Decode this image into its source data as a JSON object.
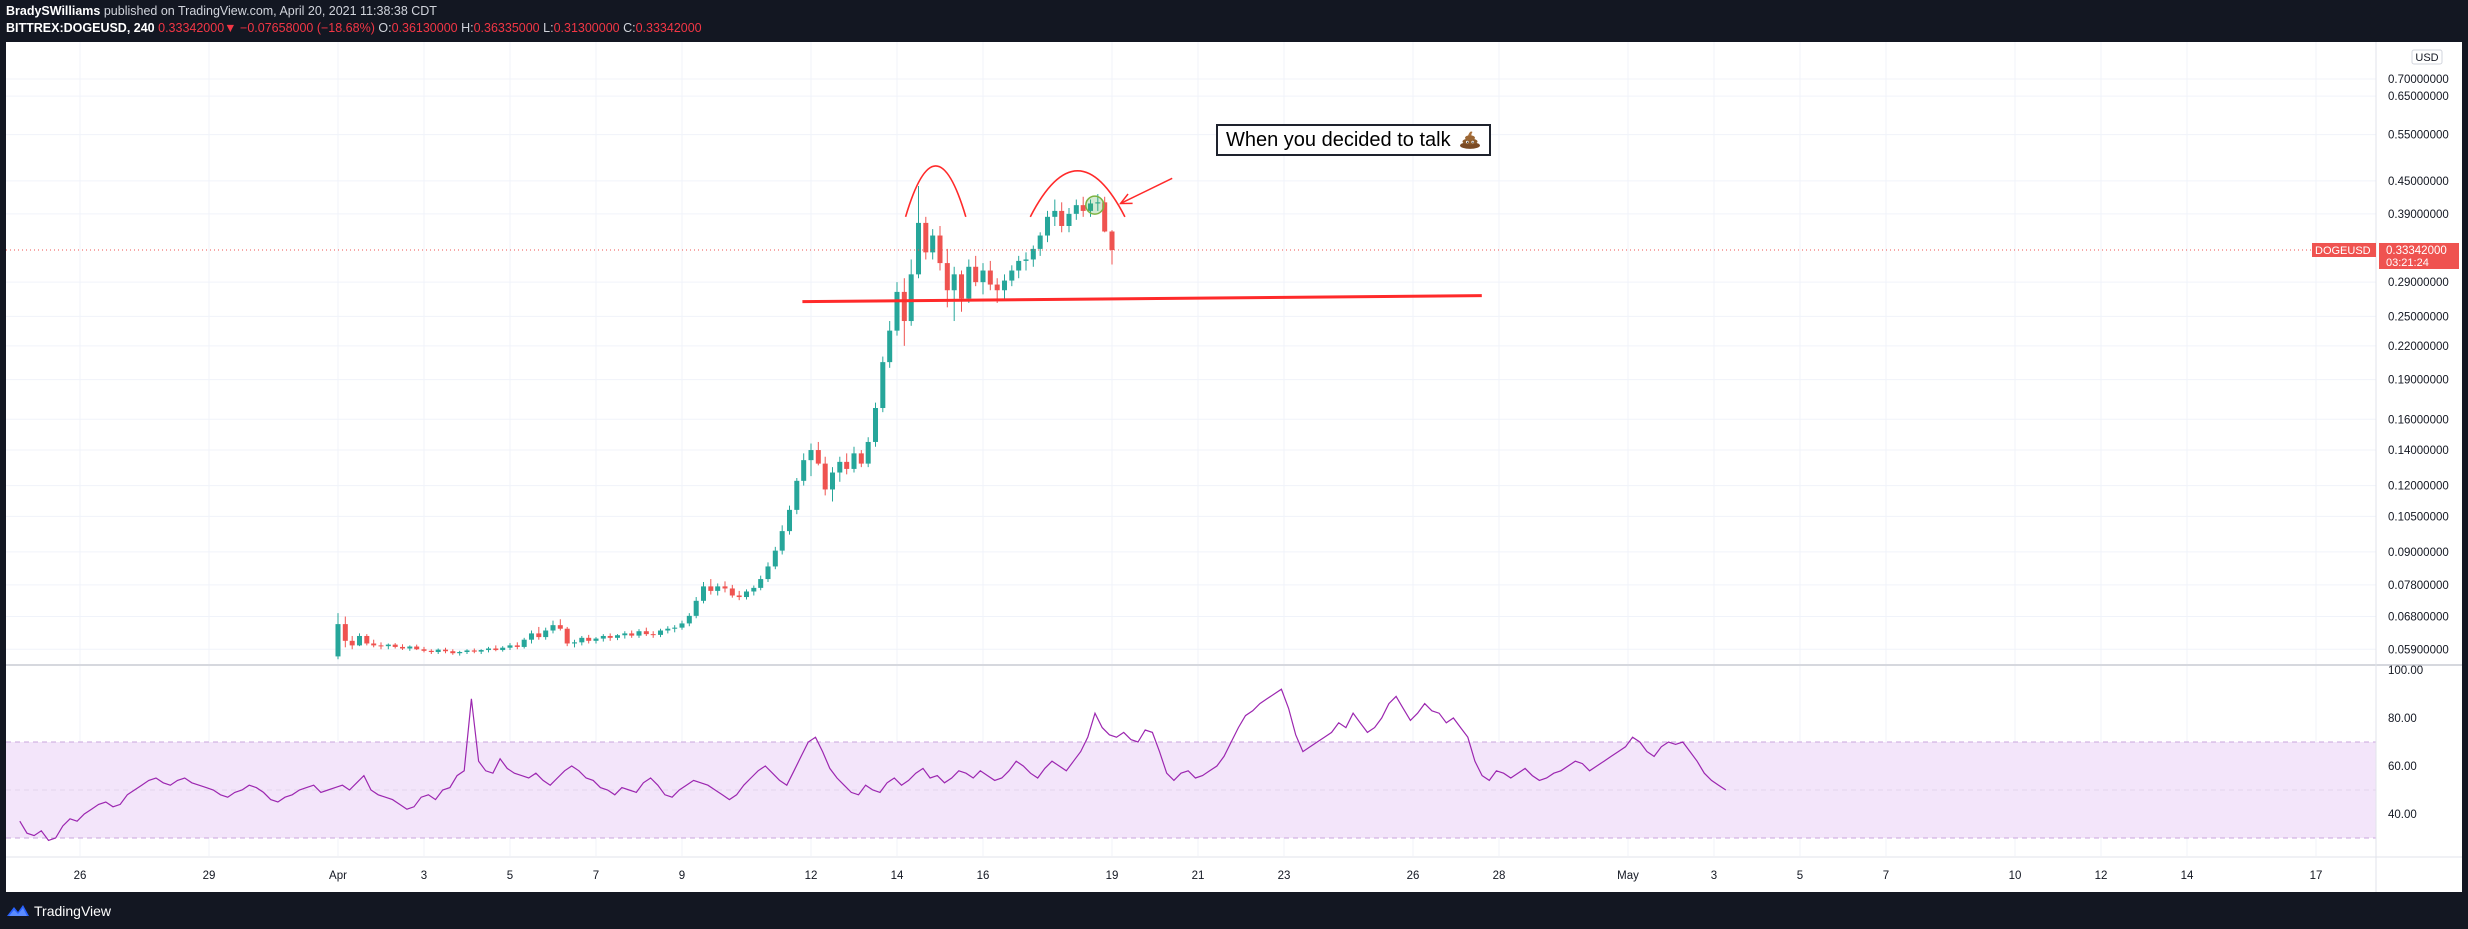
{
  "header": {
    "author": "BradySWilliams",
    "published_text": "published on TradingView.com, April 20, 2021 11:38:38 CDT",
    "symbol": "BITTREX:DOGEUSD, 240",
    "last_price": "0.33342000",
    "change_arrow": "▼",
    "change": "−0.07658000 (−18.68%)",
    "o_label": "O:",
    "o_value": "0.36130000",
    "h_label": "H:",
    "h_value": "0.36335000",
    "l_label": "L:",
    "l_value": "0.31300000",
    "c_label": "C:",
    "c_value": "0.33342000"
  },
  "annotation": {
    "text": "When you decided to talk",
    "icon": "poop-emoji-icon"
  },
  "footer": {
    "brand": "TradingView",
    "logo_icon": "tradingview-logo-icon"
  },
  "colors": {
    "up": "#26a69a",
    "down": "#ef5350",
    "rsi_line": "#9c27b0",
    "rsi_band": "#f3e5fa",
    "marker_line": "#ff2a2a",
    "price_tag": "#ef5350"
  },
  "chart_data": {
    "type": "candlestick",
    "symbol": "DOGEUSD",
    "price_axis": {
      "unit_label": "USD",
      "scale": "log",
      "ticks": [
        "0.70000000",
        "0.65000000",
        "0.55000000",
        "0.45000000",
        "0.39000000",
        "0.29000000",
        "0.25000000",
        "0.22000000",
        "0.19000000",
        "0.16000000",
        "0.14000000",
        "0.12000000",
        "0.10500000",
        "0.09000000",
        "0.07800000",
        "0.06800000",
        "0.05900000"
      ],
      "current_price_label": "0.33342000",
      "current_price_value": 0.33342,
      "countdown": "03:21:24",
      "symbol_tag": "DOGEUSD"
    },
    "x_axis": {
      "ticks": [
        "26",
        "29",
        "Apr",
        "3",
        "5",
        "7",
        "9",
        "12",
        "14",
        "16",
        "19",
        "21",
        "23",
        "26",
        "28",
        "May",
        "3",
        "5",
        "7",
        "10",
        "12",
        "14",
        "17"
      ],
      "tick_day_index": [
        0,
        3,
        6,
        8,
        10,
        12,
        14,
        17,
        19,
        21,
        24,
        26,
        28,
        31,
        33,
        36,
        38,
        40,
        42,
        45,
        47,
        49,
        52
      ],
      "day0": "Mar 26",
      "days_shown": 54.5
    },
    "candles_4h": [
      {
        "t": 6.0,
        "o": 0.0572,
        "h": 0.069,
        "l": 0.0565,
        "c": 0.0658
      },
      {
        "t": 6.17,
        "o": 0.0658,
        "h": 0.068,
        "l": 0.0595,
        "c": 0.0612
      },
      {
        "t": 6.33,
        "o": 0.0612,
        "h": 0.0625,
        "l": 0.059,
        "c": 0.06
      },
      {
        "t": 6.5,
        "o": 0.06,
        "h": 0.0632,
        "l": 0.0598,
        "c": 0.0625
      },
      {
        "t": 6.67,
        "o": 0.0625,
        "h": 0.063,
        "l": 0.06,
        "c": 0.0605
      },
      {
        "t": 6.83,
        "o": 0.0605,
        "h": 0.0615,
        "l": 0.0595,
        "c": 0.06
      },
      {
        "t": 7.0,
        "o": 0.06,
        "h": 0.0608,
        "l": 0.059,
        "c": 0.0598
      },
      {
        "t": 7.17,
        "o": 0.0598,
        "h": 0.0605,
        "l": 0.059,
        "c": 0.0602
      },
      {
        "t": 7.33,
        "o": 0.0602,
        "h": 0.0606,
        "l": 0.0592,
        "c": 0.0596
      },
      {
        "t": 7.5,
        "o": 0.0596,
        "h": 0.0603,
        "l": 0.0588,
        "c": 0.0592
      },
      {
        "t": 7.67,
        "o": 0.0592,
        "h": 0.06,
        "l": 0.0586,
        "c": 0.0597
      },
      {
        "t": 7.83,
        "o": 0.0597,
        "h": 0.0602,
        "l": 0.0588,
        "c": 0.059
      },
      {
        "t": 8.0,
        "o": 0.059,
        "h": 0.0596,
        "l": 0.0582,
        "c": 0.0586
      },
      {
        "t": 8.17,
        "o": 0.0586,
        "h": 0.059,
        "l": 0.0578,
        "c": 0.0583
      },
      {
        "t": 8.33,
        "o": 0.0583,
        "h": 0.0592,
        "l": 0.0578,
        "c": 0.0589
      },
      {
        "t": 8.5,
        "o": 0.0589,
        "h": 0.0594,
        "l": 0.058,
        "c": 0.0585
      },
      {
        "t": 8.67,
        "o": 0.0585,
        "h": 0.059,
        "l": 0.0576,
        "c": 0.058
      },
      {
        "t": 8.83,
        "o": 0.058,
        "h": 0.0586,
        "l": 0.0574,
        "c": 0.0583
      },
      {
        "t": 9.0,
        "o": 0.0583,
        "h": 0.059,
        "l": 0.0578,
        "c": 0.0587
      },
      {
        "t": 9.17,
        "o": 0.0587,
        "h": 0.0592,
        "l": 0.058,
        "c": 0.0584
      },
      {
        "t": 9.33,
        "o": 0.0584,
        "h": 0.059,
        "l": 0.0578,
        "c": 0.0588
      },
      {
        "t": 9.5,
        "o": 0.0588,
        "h": 0.0596,
        "l": 0.0582,
        "c": 0.0592
      },
      {
        "t": 9.67,
        "o": 0.0592,
        "h": 0.06,
        "l": 0.0585,
        "c": 0.0588
      },
      {
        "t": 9.83,
        "o": 0.0588,
        "h": 0.0598,
        "l": 0.0584,
        "c": 0.0594
      },
      {
        "t": 10.0,
        "o": 0.0594,
        "h": 0.0606,
        "l": 0.0588,
        "c": 0.06
      },
      {
        "t": 10.17,
        "o": 0.06,
        "h": 0.0608,
        "l": 0.059,
        "c": 0.0596
      },
      {
        "t": 10.33,
        "o": 0.0596,
        "h": 0.062,
        "l": 0.0592,
        "c": 0.0615
      },
      {
        "t": 10.5,
        "o": 0.0615,
        "h": 0.064,
        "l": 0.0605,
        "c": 0.0632
      },
      {
        "t": 10.67,
        "o": 0.0632,
        "h": 0.065,
        "l": 0.0615,
        "c": 0.0622
      },
      {
        "t": 10.83,
        "o": 0.0622,
        "h": 0.0648,
        "l": 0.0615,
        "c": 0.064
      },
      {
        "t": 11.0,
        "o": 0.064,
        "h": 0.0668,
        "l": 0.0632,
        "c": 0.0655
      },
      {
        "t": 11.17,
        "o": 0.0655,
        "h": 0.0672,
        "l": 0.064,
        "c": 0.0645
      },
      {
        "t": 11.33,
        "o": 0.0645,
        "h": 0.065,
        "l": 0.0598,
        "c": 0.0605
      },
      {
        "t": 11.5,
        "o": 0.0605,
        "h": 0.0615,
        "l": 0.0595,
        "c": 0.0608
      },
      {
        "t": 11.67,
        "o": 0.0608,
        "h": 0.0625,
        "l": 0.06,
        "c": 0.062
      },
      {
        "t": 11.83,
        "o": 0.062,
        "h": 0.0628,
        "l": 0.0605,
        "c": 0.0612
      },
      {
        "t": 12.0,
        "o": 0.0612,
        "h": 0.0622,
        "l": 0.0605,
        "c": 0.0618
      },
      {
        "t": 12.17,
        "o": 0.0618,
        "h": 0.063,
        "l": 0.061,
        "c": 0.0625
      },
      {
        "t": 12.33,
        "o": 0.0625,
        "h": 0.0632,
        "l": 0.0612,
        "c": 0.062
      },
      {
        "t": 12.5,
        "o": 0.062,
        "h": 0.063,
        "l": 0.0614,
        "c": 0.0627
      },
      {
        "t": 12.67,
        "o": 0.0627,
        "h": 0.0638,
        "l": 0.0618,
        "c": 0.0632
      },
      {
        "t": 12.83,
        "o": 0.0632,
        "h": 0.064,
        "l": 0.062,
        "c": 0.0626
      },
      {
        "t": 13.0,
        "o": 0.0626,
        "h": 0.0644,
        "l": 0.062,
        "c": 0.0638
      },
      {
        "t": 13.17,
        "o": 0.0638,
        "h": 0.0648,
        "l": 0.0625,
        "c": 0.063
      },
      {
        "t": 13.33,
        "o": 0.063,
        "h": 0.0638,
        "l": 0.062,
        "c": 0.0628
      },
      {
        "t": 13.5,
        "o": 0.0628,
        "h": 0.0645,
        "l": 0.0622,
        "c": 0.064
      },
      {
        "t": 13.67,
        "o": 0.064,
        "h": 0.0652,
        "l": 0.0632,
        "c": 0.0645
      },
      {
        "t": 13.83,
        "o": 0.0645,
        "h": 0.0655,
        "l": 0.0635,
        "c": 0.0648
      },
      {
        "t": 14.0,
        "o": 0.0648,
        "h": 0.0668,
        "l": 0.0642,
        "c": 0.066
      },
      {
        "t": 14.17,
        "o": 0.066,
        "h": 0.069,
        "l": 0.0652,
        "c": 0.0682
      },
      {
        "t": 14.33,
        "o": 0.0682,
        "h": 0.074,
        "l": 0.0675,
        "c": 0.0728
      },
      {
        "t": 14.5,
        "o": 0.0728,
        "h": 0.079,
        "l": 0.072,
        "c": 0.0775
      },
      {
        "t": 14.67,
        "o": 0.0775,
        "h": 0.08,
        "l": 0.0748,
        "c": 0.076
      },
      {
        "t": 14.83,
        "o": 0.076,
        "h": 0.0785,
        "l": 0.0745,
        "c": 0.0775
      },
      {
        "t": 15.0,
        "o": 0.0775,
        "h": 0.0792,
        "l": 0.0755,
        "c": 0.0768
      },
      {
        "t": 15.17,
        "o": 0.0768,
        "h": 0.078,
        "l": 0.0738,
        "c": 0.0745
      },
      {
        "t": 15.33,
        "o": 0.0745,
        "h": 0.076,
        "l": 0.073,
        "c": 0.074
      },
      {
        "t": 15.5,
        "o": 0.074,
        "h": 0.0765,
        "l": 0.0732,
        "c": 0.0758
      },
      {
        "t": 15.67,
        "o": 0.0758,
        "h": 0.0778,
        "l": 0.0745,
        "c": 0.077
      },
      {
        "t": 15.83,
        "o": 0.077,
        "h": 0.0812,
        "l": 0.0762,
        "c": 0.08
      },
      {
        "t": 16.0,
        "o": 0.08,
        "h": 0.086,
        "l": 0.079,
        "c": 0.0845
      },
      {
        "t": 16.17,
        "o": 0.0845,
        "h": 0.092,
        "l": 0.0835,
        "c": 0.0905
      },
      {
        "t": 16.33,
        "o": 0.0905,
        "h": 0.101,
        "l": 0.089,
        "c": 0.0985
      },
      {
        "t": 16.5,
        "o": 0.0985,
        "h": 0.11,
        "l": 0.097,
        "c": 0.108
      },
      {
        "t": 16.67,
        "o": 0.108,
        "h": 0.124,
        "l": 0.106,
        "c": 0.1225
      },
      {
        "t": 16.83,
        "o": 0.1225,
        "h": 0.138,
        "l": 0.12,
        "c": 0.134
      },
      {
        "t": 17.0,
        "o": 0.134,
        "h": 0.144,
        "l": 0.125,
        "c": 0.14
      },
      {
        "t": 17.17,
        "o": 0.14,
        "h": 0.145,
        "l": 0.131,
        "c": 0.132
      },
      {
        "t": 17.33,
        "o": 0.132,
        "h": 0.136,
        "l": 0.115,
        "c": 0.118
      },
      {
        "t": 17.5,
        "o": 0.118,
        "h": 0.13,
        "l": 0.112,
        "c": 0.127
      },
      {
        "t": 17.67,
        "o": 0.127,
        "h": 0.136,
        "l": 0.122,
        "c": 0.133
      },
      {
        "t": 17.83,
        "o": 0.133,
        "h": 0.138,
        "l": 0.126,
        "c": 0.129
      },
      {
        "t": 18.0,
        "o": 0.129,
        "h": 0.142,
        "l": 0.127,
        "c": 0.138
      },
      {
        "t": 18.17,
        "o": 0.138,
        "h": 0.14,
        "l": 0.13,
        "c": 0.132
      },
      {
        "t": 18.33,
        "o": 0.132,
        "h": 0.148,
        "l": 0.13,
        "c": 0.145
      },
      {
        "t": 18.5,
        "o": 0.145,
        "h": 0.172,
        "l": 0.142,
        "c": 0.168
      },
      {
        "t": 18.67,
        "o": 0.168,
        "h": 0.21,
        "l": 0.165,
        "c": 0.205
      },
      {
        "t": 18.83,
        "o": 0.205,
        "h": 0.245,
        "l": 0.2,
        "c": 0.235
      },
      {
        "t": 19.0,
        "o": 0.235,
        "h": 0.29,
        "l": 0.23,
        "c": 0.278
      },
      {
        "t": 19.17,
        "o": 0.278,
        "h": 0.295,
        "l": 0.22,
        "c": 0.245
      },
      {
        "t": 19.33,
        "o": 0.245,
        "h": 0.32,
        "l": 0.24,
        "c": 0.3
      },
      {
        "t": 19.5,
        "o": 0.3,
        "h": 0.44,
        "l": 0.295,
        "c": 0.375
      },
      {
        "t": 19.67,
        "o": 0.375,
        "h": 0.385,
        "l": 0.32,
        "c": 0.33
      },
      {
        "t": 19.83,
        "o": 0.33,
        "h": 0.365,
        "l": 0.32,
        "c": 0.355
      },
      {
        "t": 20.0,
        "o": 0.355,
        "h": 0.37,
        "l": 0.305,
        "c": 0.315
      },
      {
        "t": 20.17,
        "o": 0.315,
        "h": 0.335,
        "l": 0.26,
        "c": 0.28
      },
      {
        "t": 20.33,
        "o": 0.28,
        "h": 0.31,
        "l": 0.245,
        "c": 0.3
      },
      {
        "t": 20.5,
        "o": 0.3,
        "h": 0.305,
        "l": 0.255,
        "c": 0.27
      },
      {
        "t": 20.67,
        "o": 0.27,
        "h": 0.32,
        "l": 0.265,
        "c": 0.31
      },
      {
        "t": 20.83,
        "o": 0.31,
        "h": 0.325,
        "l": 0.285,
        "c": 0.29
      },
      {
        "t": 21.0,
        "o": 0.29,
        "h": 0.315,
        "l": 0.275,
        "c": 0.305
      },
      {
        "t": 21.17,
        "o": 0.305,
        "h": 0.318,
        "l": 0.28,
        "c": 0.287
      },
      {
        "t": 21.33,
        "o": 0.287,
        "h": 0.295,
        "l": 0.265,
        "c": 0.28
      },
      {
        "t": 21.5,
        "o": 0.28,
        "h": 0.3,
        "l": 0.27,
        "c": 0.292
      },
      {
        "t": 21.67,
        "o": 0.292,
        "h": 0.312,
        "l": 0.285,
        "c": 0.305
      },
      {
        "t": 21.83,
        "o": 0.305,
        "h": 0.325,
        "l": 0.295,
        "c": 0.318
      },
      {
        "t": 22.0,
        "o": 0.318,
        "h": 0.33,
        "l": 0.305,
        "c": 0.32
      },
      {
        "t": 22.17,
        "o": 0.32,
        "h": 0.34,
        "l": 0.31,
        "c": 0.335
      },
      {
        "t": 22.33,
        "o": 0.335,
        "h": 0.36,
        "l": 0.325,
        "c": 0.355
      },
      {
        "t": 22.5,
        "o": 0.355,
        "h": 0.395,
        "l": 0.345,
        "c": 0.385
      },
      {
        "t": 22.67,
        "o": 0.385,
        "h": 0.415,
        "l": 0.37,
        "c": 0.395
      },
      {
        "t": 22.83,
        "o": 0.395,
        "h": 0.41,
        "l": 0.36,
        "c": 0.37
      },
      {
        "t": 23.0,
        "o": 0.37,
        "h": 0.4,
        "l": 0.36,
        "c": 0.39
      },
      {
        "t": 23.17,
        "o": 0.39,
        "h": 0.415,
        "l": 0.38,
        "c": 0.405
      },
      {
        "t": 23.33,
        "o": 0.405,
        "h": 0.42,
        "l": 0.385,
        "c": 0.395
      },
      {
        "t": 23.5,
        "o": 0.395,
        "h": 0.415,
        "l": 0.385,
        "c": 0.408
      },
      {
        "t": 23.67,
        "o": 0.408,
        "h": 0.425,
        "l": 0.395,
        "c": 0.41
      },
      {
        "t": 23.83,
        "o": 0.41,
        "h": 0.42,
        "l": 0.36,
        "c": 0.3613
      },
      {
        "t": 24.0,
        "o": 0.3613,
        "h": 0.3634,
        "l": 0.313,
        "c": 0.3334
      }
    ],
    "annotations": {
      "horizontal_line_price": 0.27,
      "horizontal_line_start_day": 16.8,
      "horizontal_line_end_day": 32.6,
      "arcs": [
        {
          "start_day": 19.2,
          "end_day": 20.6,
          "top_price": 0.48
        },
        {
          "start_day": 22.1,
          "end_day": 24.3,
          "top_price": 0.47
        }
      ],
      "highlight_day": 23.6,
      "highlight_price": 0.405,
      "arrow_from_day": 25.4,
      "arrow_from_price": 0.455,
      "arrow_to_day": 24.2,
      "arrow_to_price": 0.408
    },
    "rsi": {
      "levels": {
        "upper": 70,
        "middle": 50,
        "lower": 30
      },
      "ticks": [
        "100.00",
        "80.00",
        "60.00",
        "40.00"
      ],
      "ylim": [
        25,
        100
      ],
      "start_day": -1.4,
      "step_days": 0.1667,
      "values": [
        37,
        32,
        31,
        33,
        29,
        30,
        35,
        38,
        37,
        40,
        42,
        44,
        45,
        43,
        44,
        48,
        50,
        52,
        54,
        55,
        53,
        52,
        54,
        55,
        53,
        52,
        51,
        50,
        48,
        47,
        49,
        50,
        52,
        51,
        49,
        46,
        45,
        47,
        48,
        50,
        51,
        52,
        49,
        50,
        51,
        52,
        50,
        53,
        56,
        50,
        48,
        47,
        46,
        44,
        42,
        43,
        47,
        48,
        46,
        50,
        51,
        56,
        58,
        88,
        62,
        58,
        57,
        63,
        59,
        57,
        56,
        55,
        57,
        54,
        52,
        55,
        58,
        60,
        58,
        55,
        54,
        51,
        50,
        48,
        51,
        50,
        49,
        53,
        55,
        52,
        48,
        47,
        50,
        52,
        54,
        53,
        52,
        50,
        48,
        46,
        48,
        52,
        55,
        58,
        60,
        57,
        54,
        52,
        58,
        64,
        70,
        72,
        66,
        59,
        55,
        52,
        49,
        48,
        52,
        50,
        49,
        53,
        55,
        52,
        54,
        57,
        59,
        55,
        56,
        53,
        55,
        58,
        57,
        55,
        58,
        56,
        54,
        55,
        58,
        62,
        60,
        57,
        55,
        59,
        62,
        60,
        58,
        62,
        66,
        72,
        82,
        76,
        73,
        72,
        74,
        71,
        70,
        75,
        74,
        66,
        57,
        54,
        57,
        58,
        55,
        56,
        58,
        60,
        64,
        70,
        76,
        81,
        83,
        86,
        88,
        90,
        92,
        84,
        73,
        66,
        68,
        70,
        72,
        74,
        78,
        76,
        82,
        78,
        74,
        76,
        80,
        86,
        89,
        84,
        79,
        82,
        86,
        83,
        82,
        78,
        80,
        76,
        72,
        62,
        56,
        54,
        58,
        57,
        55,
        57,
        59,
        56,
        54,
        55,
        57,
        58,
        60,
        62,
        61,
        58,
        60,
        62,
        64,
        66,
        68,
        72,
        70,
        66,
        64,
        68,
        70,
        69,
        70,
        66,
        62,
        57,
        54,
        52,
        50
      ]
    }
  }
}
